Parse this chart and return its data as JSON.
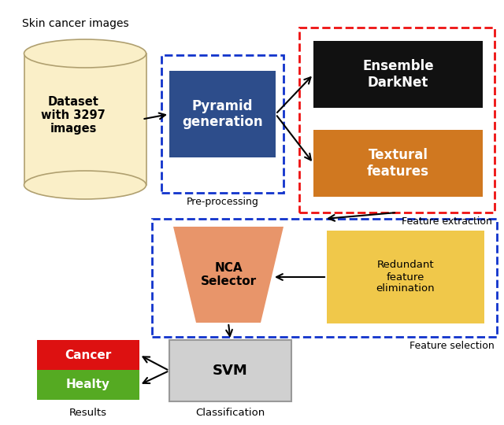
{
  "bg_color": "#ffffff",
  "skin_cancer_text": "Skin cancer images",
  "dataset_text": "Dataset\nwith 3297\nimages",
  "pyramid_text": "Pyramid\ngeneration",
  "preprocessing_label": "Pre-processing",
  "ensemble_text": "Ensemble\nDarkNet",
  "textural_text": "Textural\nfeatures",
  "feature_extraction_label": "Feature extraction",
  "nca_text": "NCA\nSelector",
  "redundant_text": "Redundant\nfeature\nelimination",
  "feature_selection_label": "Feature selection",
  "svm_text": "SVM",
  "cancer_text": "Cancer",
  "healty_text": "Healty",
  "results_label": "Results",
  "classification_label": "Classification",
  "cylinder_color": "#faefc8",
  "cylinder_edge_color": "#b0a070",
  "pyramid_box_color": "#2d4d8b",
  "pyramid_text_color": "#ffffff",
  "ensemble_box_color": "#111111",
  "ensemble_text_color": "#ffffff",
  "textural_box_color": "#d07820",
  "textural_text_color": "#ffffff",
  "red_dashed_color": "#ee1111",
  "blue_dashed_color": "#1133cc",
  "nca_box_color": "#e8956a",
  "redundant_box_color": "#f0c84a",
  "svm_box_color": "#d0d0d0",
  "cancer_box_color": "#dd1111",
  "healty_box_color": "#55aa22",
  "label_color": "#000000"
}
